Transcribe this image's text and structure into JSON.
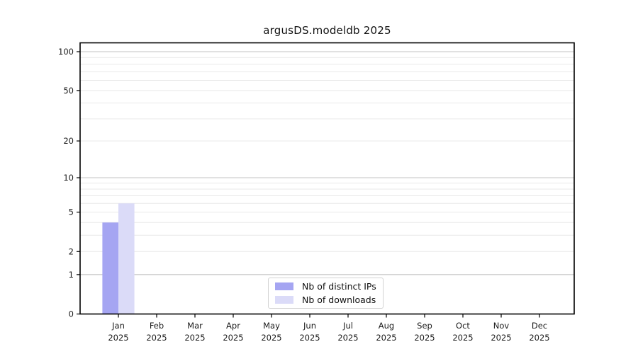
{
  "chart_data": {
    "type": "bar",
    "title": "argusDS.modeldb 2025",
    "scale": "log1p",
    "categories": [
      "Jan",
      "Feb",
      "Mar",
      "Apr",
      "May",
      "Jun",
      "Jul",
      "Aug",
      "Sep",
      "Oct",
      "Nov",
      "Dec"
    ],
    "category_year": "2025",
    "series": [
      {
        "name": "Nb of distinct IPs",
        "color": "#a5a5f2",
        "values": [
          4,
          0,
          0,
          0,
          0,
          0,
          0,
          0,
          0,
          0,
          0,
          0
        ]
      },
      {
        "name": "Nb of downloads",
        "color": "#dbdbf8",
        "values": [
          6,
          0,
          0,
          0,
          0,
          0,
          0,
          0,
          0,
          0,
          0,
          0
        ]
      }
    ],
    "xlabel": "",
    "ylabel": "",
    "ylim": [
      0,
      117
    ],
    "y_ticks": [
      0,
      1,
      2,
      5,
      10,
      20,
      50,
      100
    ],
    "gridlines": {
      "major": [
        1,
        10,
        100
      ],
      "minor": [
        2,
        3,
        4,
        5,
        6,
        7,
        8,
        9,
        20,
        30,
        40,
        50,
        60,
        70,
        80,
        90
      ]
    },
    "grid": true,
    "legend_position": "lower center",
    "colors": {
      "major_grid": "#c3c3c3",
      "minor_grid": "#e9e9e9",
      "spine": "#000000",
      "tick_text": "#1a1a1a"
    }
  }
}
